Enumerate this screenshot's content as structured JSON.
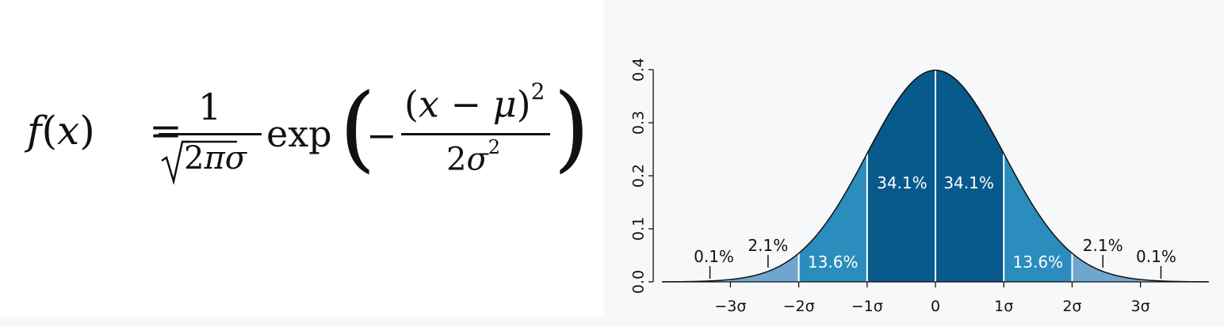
{
  "formula": {
    "f": "f",
    "x": "x",
    "lparen": "(",
    "rparen": ")",
    "equals": "=",
    "one": "1",
    "two": "2",
    "pi": "π",
    "sigma": "σ",
    "exp": "exp",
    "minus": "−",
    "mu": "μ",
    "power": "2"
  },
  "chart_data": {
    "type": "area",
    "title": "",
    "xlabel": "",
    "ylabel": "",
    "x_range": [
      -4,
      4
    ],
    "ylim": [
      0,
      0.4
    ],
    "y_ticks": [
      "0.0",
      "0.1",
      "0.2",
      "0.3",
      "0.4"
    ],
    "x_ticks": [
      {
        "value": -3,
        "label": "−3σ"
      },
      {
        "value": -2,
        "label": "−2σ"
      },
      {
        "value": -1,
        "label": "−1σ"
      },
      {
        "value": 0,
        "label": "0"
      },
      {
        "value": 1,
        "label": "1σ"
      },
      {
        "value": 2,
        "label": "2σ"
      },
      {
        "value": 3,
        "label": "3σ"
      }
    ],
    "curve": "normal density, mean 0, sd 1",
    "regions": [
      {
        "from": -3,
        "to": -2,
        "label": "2.1%",
        "color": "#6fa6cf"
      },
      {
        "from": -2,
        "to": -1,
        "label": "13.6%",
        "color": "#2b8cbe"
      },
      {
        "from": -1,
        "to": 0,
        "label": "34.1%",
        "color": "#08598c"
      },
      {
        "from": 0,
        "to": 1,
        "label": "34.1%",
        "color": "#08598c"
      },
      {
        "from": 1,
        "to": 2,
        "label": "13.6%",
        "color": "#2b8cbe"
      },
      {
        "from": 2,
        "to": 3,
        "label": "2.1%",
        "color": "#6fa6cf"
      }
    ],
    "tail_label": "0.1%",
    "grid": false
  }
}
